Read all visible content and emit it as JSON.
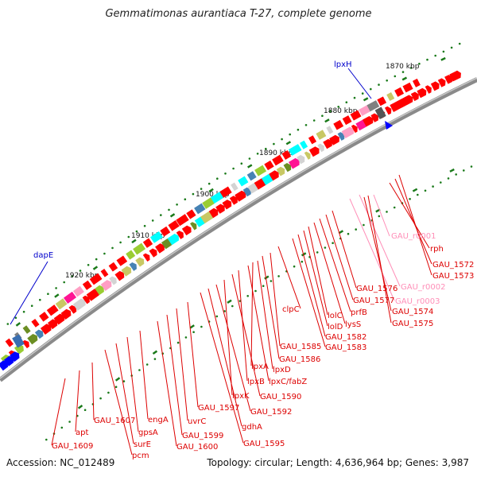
{
  "title": "Gemmatimonas aurantiaca T-27, complete genome",
  "accession": "Accession: NC_012489",
  "summary": "Topology: circular; Length: 4,636,964 bp; Genes: 3,987",
  "colors": {
    "backbone": "#808080",
    "gene_red": "#ff0000",
    "gene_blue": "#0000ff",
    "rna_pink": "#ff9ec4",
    "tick_green": "#1a7a1a",
    "label_red": "#dd0000",
    "label_pink": "#ff8fb8",
    "label_blue": "#0000cc"
  },
  "scale_labels": [
    "1870 kbp",
    "1880 kbp",
    "1890 kbp",
    "1900 kbp",
    "1910 kbp",
    "1920 kbp"
  ],
  "gene_labels": [
    {
      "text": "rph",
      "color": "red"
    },
    {
      "text": "GAU_1572",
      "color": "red"
    },
    {
      "text": "GAU_1573",
      "color": "red"
    },
    {
      "text": "GAU_r0001",
      "color": "pink"
    },
    {
      "text": "GAU_r0002",
      "color": "pink"
    },
    {
      "text": "GAU_r0003",
      "color": "pink"
    },
    {
      "text": "GAU_1574",
      "color": "red"
    },
    {
      "text": "GAU_1575",
      "color": "red"
    },
    {
      "text": "GAU_1576",
      "color": "red"
    },
    {
      "text": "GAU_1577",
      "color": "red"
    },
    {
      "text": "prfB",
      "color": "red"
    },
    {
      "text": "lysS",
      "color": "red"
    },
    {
      "text": "lolC",
      "color": "red"
    },
    {
      "text": "lolD",
      "color": "red"
    },
    {
      "text": "GAU_1582",
      "color": "red"
    },
    {
      "text": "GAU_1583",
      "color": "red"
    },
    {
      "text": "clpC",
      "color": "red"
    },
    {
      "text": "GAU_1585",
      "color": "red"
    },
    {
      "text": "GAU_1586",
      "color": "red"
    },
    {
      "text": "lpxA",
      "color": "red"
    },
    {
      "text": "lpxD",
      "color": "red"
    },
    {
      "text": "lpxC/fabZ",
      "color": "red"
    },
    {
      "text": "lpxB",
      "color": "red"
    },
    {
      "text": "GAU_1590",
      "color": "red"
    },
    {
      "text": "lpxK",
      "color": "red"
    },
    {
      "text": "GAU_1592",
      "color": "red"
    },
    {
      "text": "gdhA",
      "color": "red"
    },
    {
      "text": "GAU_1595",
      "color": "red"
    },
    {
      "text": "GAU_1597",
      "color": "red"
    },
    {
      "text": "uvrC",
      "color": "red"
    },
    {
      "text": "GAU_1599",
      "color": "red"
    },
    {
      "text": "GAU_1600",
      "color": "red"
    },
    {
      "text": "engA",
      "color": "red"
    },
    {
      "text": "gpsA",
      "color": "red"
    },
    {
      "text": "surE",
      "color": "red"
    },
    {
      "text": "pcm",
      "color": "red"
    },
    {
      "text": "GAU_1607",
      "color": "red"
    },
    {
      "text": "apt",
      "color": "red"
    },
    {
      "text": "GAU_1609",
      "color": "red"
    },
    {
      "text": "lpxH",
      "color": "blue"
    },
    {
      "text": "dapE",
      "color": "blue"
    }
  ]
}
